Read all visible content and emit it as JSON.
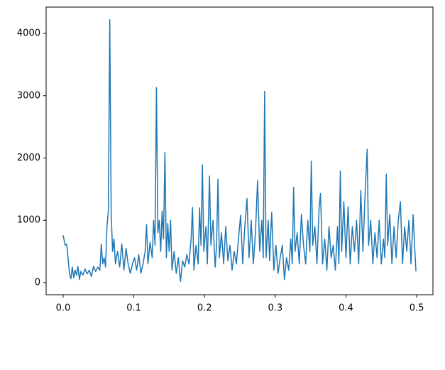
{
  "chart_data": {
    "type": "line",
    "x": [
      0,
      0.003,
      0.005,
      0.007,
      0.009,
      0.011,
      0.013,
      0.015,
      0.017,
      0.019,
      0.021,
      0.023,
      0.025,
      0.028,
      0.031,
      0.034,
      0.037,
      0.04,
      0.043,
      0.046,
      0.049,
      0.052,
      0.054,
      0.056,
      0.058,
      0.06,
      0.062,
      0.064,
      0.066,
      0.068,
      0.07,
      0.072,
      0.074,
      0.077,
      0.08,
      0.083,
      0.086,
      0.089,
      0.092,
      0.095,
      0.098,
      0.101,
      0.104,
      0.107,
      0.11,
      0.113,
      0.116,
      0.118,
      0.12,
      0.123,
      0.126,
      0.128,
      0.13,
      0.132,
      0.134,
      0.136,
      0.138,
      0.14,
      0.142,
      0.144,
      0.146,
      0.148,
      0.15,
      0.152,
      0.154,
      0.157,
      0.16,
      0.163,
      0.166,
      0.169,
      0.172,
      0.175,
      0.178,
      0.181,
      0.183,
      0.185,
      0.188,
      0.191,
      0.193,
      0.195,
      0.197,
      0.199,
      0.202,
      0.204,
      0.207,
      0.209,
      0.212,
      0.215,
      0.217,
      0.219,
      0.221,
      0.224,
      0.227,
      0.23,
      0.233,
      0.236,
      0.239,
      0.242,
      0.245,
      0.248,
      0.251,
      0.254,
      0.257,
      0.26,
      0.263,
      0.266,
      0.269,
      0.272,
      0.275,
      0.278,
      0.281,
      0.283,
      0.285,
      0.287,
      0.29,
      0.292,
      0.295,
      0.298,
      0.301,
      0.304,
      0.307,
      0.31,
      0.313,
      0.316,
      0.319,
      0.322,
      0.324,
      0.326,
      0.328,
      0.331,
      0.334,
      0.337,
      0.34,
      0.343,
      0.346,
      0.349,
      0.351,
      0.353,
      0.356,
      0.359,
      0.362,
      0.364,
      0.367,
      0.37,
      0.373,
      0.376,
      0.379,
      0.382,
      0.385,
      0.388,
      0.39,
      0.392,
      0.394,
      0.397,
      0.4,
      0.403,
      0.406,
      0.409,
      0.412,
      0.415,
      0.418,
      0.421,
      0.424,
      0.427,
      0.43,
      0.432,
      0.435,
      0.438,
      0.441,
      0.444,
      0.447,
      0.45,
      0.453,
      0.455,
      0.457,
      0.459,
      0.462,
      0.465,
      0.468,
      0.471,
      0.474,
      0.477,
      0.48,
      0.483,
      0.486,
      0.489,
      0.492,
      0.495,
      0.497,
      0.499
    ],
    "series": [
      {
        "color": "#1f77b4",
        "values": [
          760,
          600,
          620,
          400,
          150,
          60,
          250,
          80,
          200,
          120,
          260,
          50,
          180,
          120,
          220,
          140,
          200,
          100,
          260,
          180,
          250,
          200,
          620,
          300,
          400,
          250,
          900,
          1150,
          4220,
          1100,
          500,
          700,
          300,
          500,
          250,
          620,
          200,
          550,
          300,
          150,
          300,
          400,
          200,
          450,
          150,
          300,
          500,
          930,
          300,
          650,
          400,
          1000,
          600,
          3130,
          800,
          1000,
          500,
          1150,
          700,
          2090,
          400,
          950,
          500,
          1000,
          200,
          500,
          150,
          400,
          20,
          350,
          250,
          450,
          300,
          700,
          1210,
          200,
          600,
          300,
          1200,
          600,
          1890,
          500,
          900,
          300,
          1710,
          600,
          1000,
          250,
          600,
          1660,
          400,
          800,
          300,
          900,
          350,
          600,
          200,
          500,
          300,
          700,
          1080,
          300,
          900,
          1350,
          400,
          1000,
          300,
          800,
          1640,
          500,
          1000,
          400,
          3070,
          400,
          1000,
          350,
          1130,
          200,
          600,
          150,
          400,
          600,
          50,
          400,
          200,
          700,
          300,
          1530,
          500,
          800,
          300,
          1100,
          600,
          300,
          1000,
          500,
          1950,
          600,
          900,
          300,
          1200,
          1430,
          300,
          700,
          200,
          900,
          400,
          600,
          200,
          900,
          300,
          1790,
          500,
          1300,
          400,
          1220,
          300,
          900,
          500,
          1000,
          300,
          1480,
          500,
          1400,
          2140,
          600,
          1000,
          300,
          800,
          400,
          1000,
          300,
          700,
          400,
          1740,
          600,
          1100,
          300,
          900,
          400,
          1000,
          1300,
          300,
          900,
          500,
          1000,
          300,
          1090,
          600,
          180
        ]
      }
    ],
    "xlim": [
      -0.024,
      0.523
    ],
    "xticks": [
      {
        "value": 0,
        "label": "0.0"
      },
      0.1,
      0.2,
      0.3,
      0.4,
      0.5
    ],
    "ylim": [
      -194,
      4422
    ],
    "yticks": [
      0,
      1000,
      2000,
      3000,
      4000
    ]
  }
}
